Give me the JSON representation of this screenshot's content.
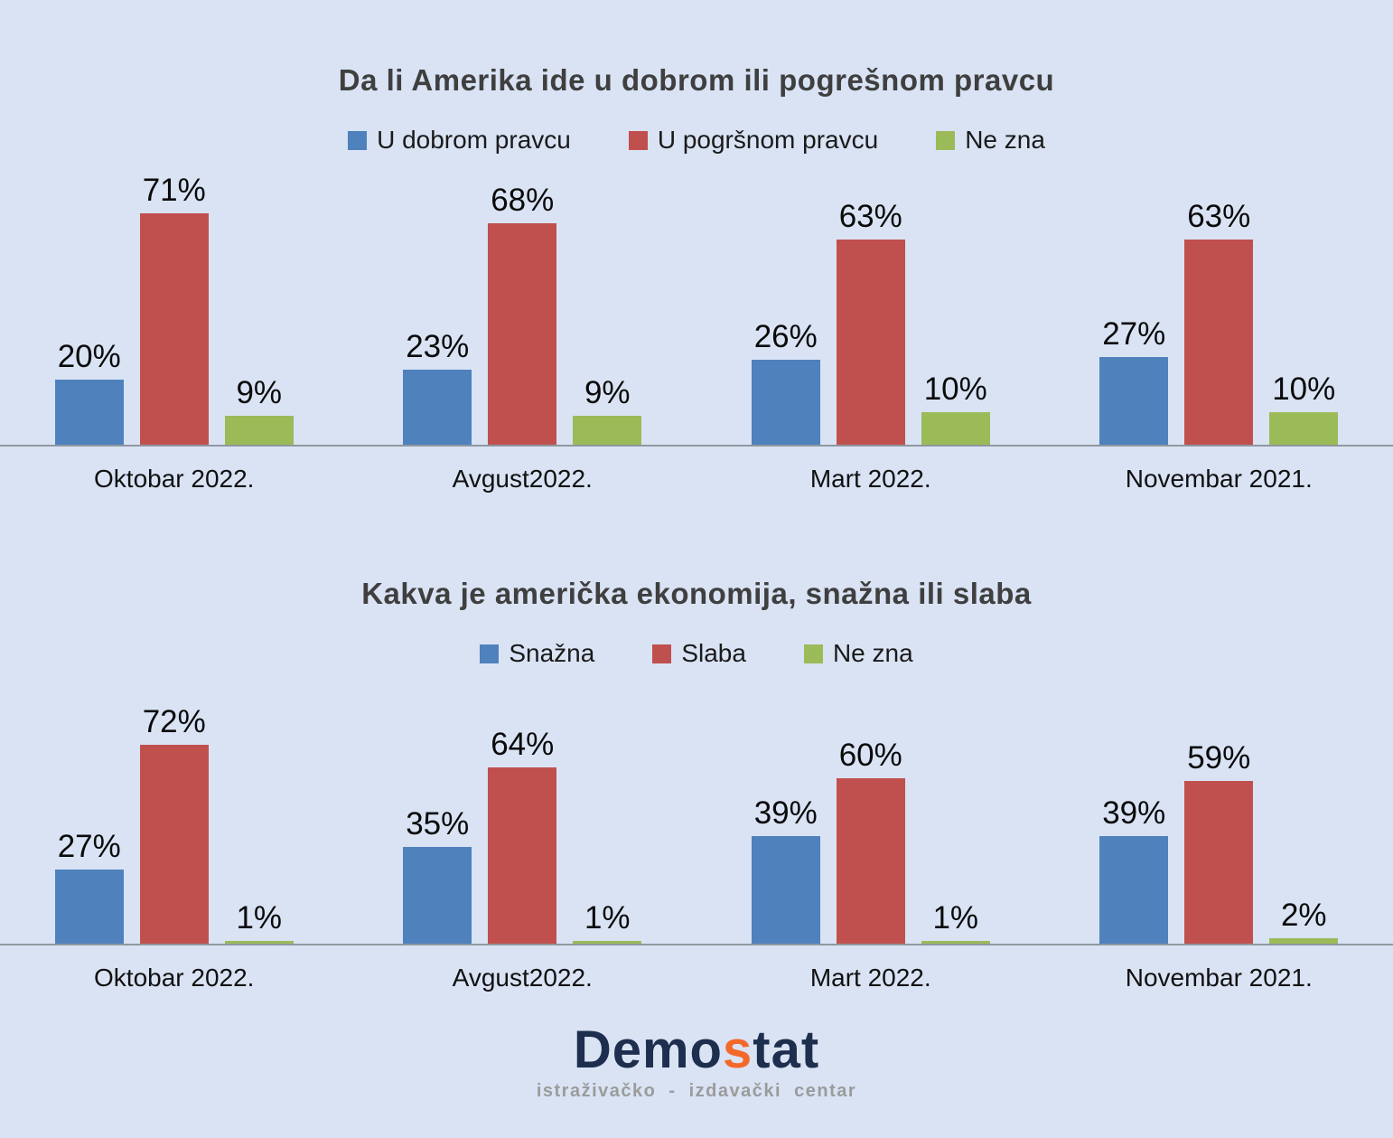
{
  "page": {
    "background_color": "#d9e3f4",
    "title_color": "#3f3f3f",
    "axis_line_color": "#8f989f"
  },
  "chart_data": [
    {
      "type": "bar",
      "title": "Da li Amerika ide u dobrom ili pogrešnom pravcu",
      "categories": [
        "Oktobar 2022.",
        "Avgust2022.",
        "Mart 2022.",
        "Novembar 2021."
      ],
      "series": [
        {
          "name": "U dobrom pravcu",
          "color": "#4f81bd",
          "values": [
            20,
            23,
            26,
            27
          ]
        },
        {
          "name": "U pogršnom pravcu",
          "color": "#c0504d",
          "values": [
            71,
            68,
            63,
            63
          ]
        },
        {
          "name": "Ne zna",
          "color": "#9bbb59",
          "values": [
            9,
            9,
            10,
            10
          ]
        }
      ],
      "value_suffix": "%",
      "ylim": [
        0,
        100
      ],
      "grid": false,
      "legend_position": "top",
      "data_labels": true
    },
    {
      "type": "bar",
      "title": "Kakva je američka ekonomija, snažna ili slaba",
      "categories": [
        "Oktobar 2022.",
        "Avgust2022.",
        "Mart 2022.",
        "Novembar 2021."
      ],
      "series": [
        {
          "name": "Snažna",
          "color": "#4f81bd",
          "values": [
            27,
            35,
            39,
            39
          ]
        },
        {
          "name": "Slaba",
          "color": "#c0504d",
          "values": [
            72,
            64,
            60,
            59
          ]
        },
        {
          "name": "Ne zna",
          "color": "#9bbb59",
          "values": [
            1,
            1,
            1,
            2
          ]
        }
      ],
      "value_suffix": "%",
      "ylim": [
        0,
        100
      ],
      "grid": false,
      "legend_position": "top",
      "data_labels": true
    }
  ],
  "footer": {
    "logo_text_primary": "Demo",
    "logo_text_accent": "s",
    "logo_text_secondary": "tat",
    "logo_color": "#1d2e4e",
    "logo_accent_color": "#f4692a",
    "logo_subtitle": "istraživačko - izdavački centar",
    "logo_subtitle_color": "#9b9b9b"
  }
}
